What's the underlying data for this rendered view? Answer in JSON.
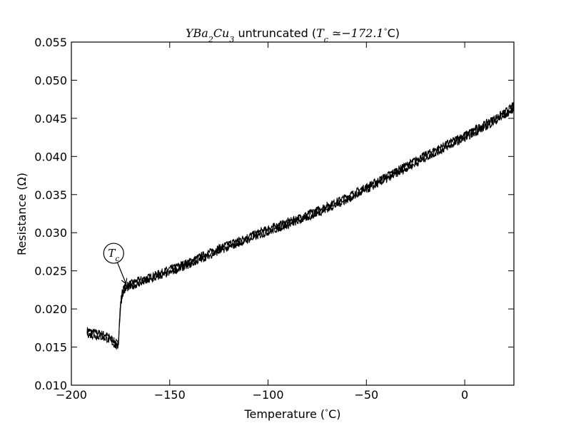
{
  "chart_data": {
    "type": "line",
    "title_prefix": "YBa",
    "title_parts": [
      "YBa",
      "2",
      "Cu",
      "3",
      " untruncated (",
      "T",
      "c",
      " ≃−172.1",
      "°",
      "C)"
    ],
    "xlabel": "Temperature (°C)",
    "xlabel_parts": [
      "Temperature (",
      "°",
      "C)"
    ],
    "ylabel": "Resistance (Ω)",
    "xlim": [
      -200,
      25
    ],
    "ylim": [
      0.01,
      0.055
    ],
    "xticks": [
      -200,
      -150,
      -100,
      -50,
      0
    ],
    "xtick_labels": [
      "−200",
      "−150",
      "−100",
      "−50",
      "0"
    ],
    "yticks": [
      0.01,
      0.015,
      0.02,
      0.025,
      0.03,
      0.035,
      0.04,
      0.045,
      0.05,
      0.055
    ],
    "ytick_labels": [
      "0.010",
      "0.015",
      "0.020",
      "0.025",
      "0.030",
      "0.035",
      "0.040",
      "0.045",
      "0.050",
      "0.055"
    ],
    "grid": false,
    "series_color": "#000000",
    "series": [
      {
        "x": [
          -192,
          -190,
          -188,
          -186,
          -184,
          -182,
          -180,
          -178,
          -176.5,
          -176,
          -175.5,
          -175,
          -174.5,
          -174,
          -173,
          -172,
          -170,
          -168,
          -165,
          -160,
          -150,
          -140,
          -130,
          -120,
          -110,
          -100,
          -90,
          -80,
          -70,
          -60,
          -50,
          -40,
          -30,
          -20,
          -10,
          0,
          10,
          20,
          25
        ],
        "y": [
          0.017,
          0.0168,
          0.0167,
          0.0166,
          0.0165,
          0.0163,
          0.016,
          0.0155,
          0.0152,
          0.016,
          0.0185,
          0.0205,
          0.0215,
          0.0222,
          0.0226,
          0.0229,
          0.0231,
          0.0233,
          0.0236,
          0.024,
          0.025,
          0.026,
          0.0272,
          0.0283,
          0.0293,
          0.0303,
          0.0312,
          0.0322,
          0.0333,
          0.0345,
          0.0358,
          0.0372,
          0.0386,
          0.04,
          0.0413,
          0.0426,
          0.044,
          0.0455,
          0.0465
        ]
      }
    ],
    "annotation": {
      "text_parts": [
        "T",
        "c"
      ],
      "label_x": -178.5,
      "label_y": 0.0273,
      "arrow_to_x": -172.2,
      "arrow_to_y": 0.0233
    }
  }
}
